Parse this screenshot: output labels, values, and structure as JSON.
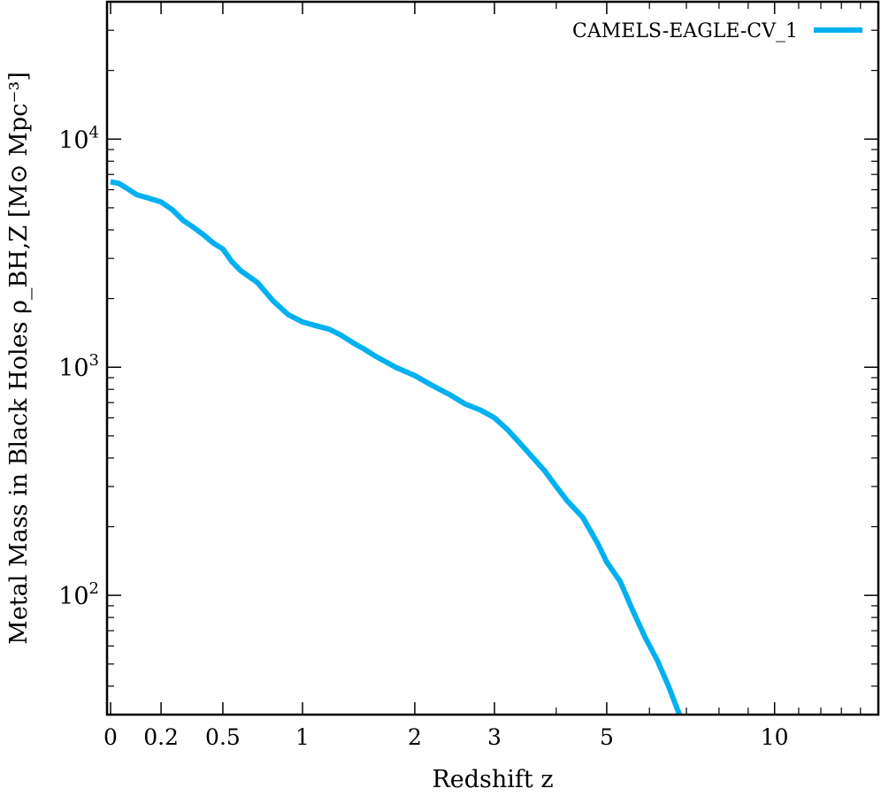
{
  "chart_data": {
    "type": "line",
    "xlabel": "Redshift z",
    "ylabel": "Metal Mass in Black Holes ρ_BH,Z [M⊙ Mpc⁻³]",
    "xscale": "log(1+z)",
    "yscale": "log",
    "xlim": [
      0,
      15
    ],
    "ylim": [
      30,
      40000
    ],
    "x_tick_labels": [
      "0",
      "0.2",
      "0.5",
      "1",
      "2",
      "3",
      "5",
      "10"
    ],
    "x_ticks": [
      0,
      0.2,
      0.5,
      1,
      2,
      3,
      5,
      10
    ],
    "y_tick_labels": [
      {
        "base": "10",
        "exp": "2",
        "value": 100
      },
      {
        "base": "10",
        "exp": "3",
        "value": 1000
      },
      {
        "base": "10",
        "exp": "4",
        "value": 10000
      }
    ],
    "grid": false,
    "legend_position": "top-right",
    "series": [
      {
        "name": "CAMELS-EAGLE-CV_1",
        "color": "#00b0f0",
        "x": [
          0,
          0.03,
          0.06,
          0.1,
          0.15,
          0.2,
          0.25,
          0.3,
          0.35,
          0.4,
          0.45,
          0.5,
          0.55,
          0.6,
          0.7,
          0.8,
          0.9,
          1.0,
          1.1,
          1.2,
          1.3,
          1.4,
          1.5,
          1.6,
          1.8,
          2.0,
          2.2,
          2.4,
          2.6,
          2.8,
          3.0,
          3.2,
          3.4,
          3.6,
          3.8,
          4.0,
          4.2,
          4.5,
          4.8,
          5.0,
          5.3,
          5.6,
          5.9,
          6.2,
          6.5,
          6.8
        ],
        "values": [
          6500,
          6400,
          6100,
          5700,
          5500,
          5300,
          4900,
          4400,
          4100,
          3800,
          3500,
          3300,
          2900,
          2650,
          2350,
          1950,
          1700,
          1580,
          1520,
          1470,
          1380,
          1280,
          1200,
          1120,
          1000,
          920,
          830,
          760,
          690,
          650,
          600,
          530,
          460,
          400,
          350,
          300,
          260,
          220,
          170,
          140,
          115,
          85,
          65,
          52,
          40,
          30
        ]
      }
    ]
  }
}
